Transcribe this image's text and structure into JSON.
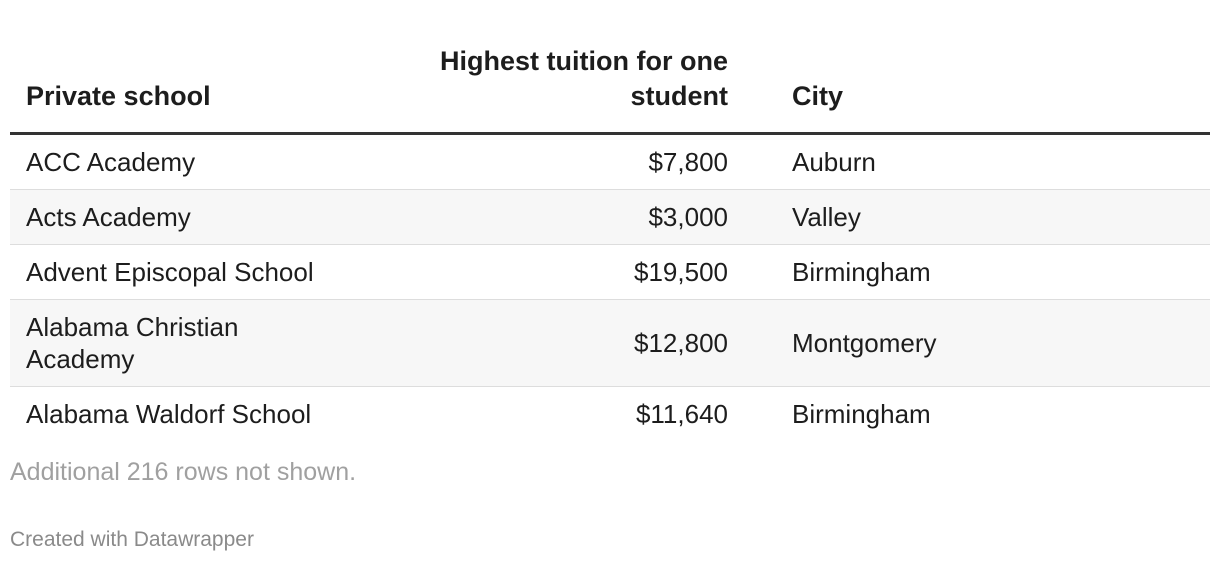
{
  "table": {
    "header": [
      "Private school",
      "Highest tuition for one student",
      "City"
    ],
    "rows": [
      [
        "ACC Academy",
        "$7,800",
        "Auburn"
      ],
      [
        "Acts Academy",
        "$3,000",
        "Valley"
      ],
      [
        "Advent Episcopal School",
        "$19,500",
        "Birmingham"
      ],
      [
        "Alabama Christian Academy",
        "$12,800",
        "Montgomery"
      ],
      [
        "Alabama Waldorf School",
        "$11,640",
        "Birmingham"
      ]
    ]
  },
  "notes": "Additional 216 rows not shown.",
  "footer": "Created with Datawrapper"
}
